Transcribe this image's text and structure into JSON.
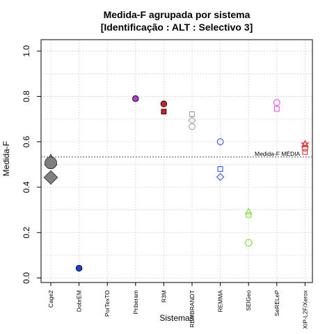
{
  "chart_data": {
    "type": "scatter",
    "title": "Medida-F agrupada por sistema",
    "subtitle": "[Identificação : ALT : Selectivo 3]",
    "xlabel": "Sistemas",
    "ylabel": "Medida-F",
    "categories": [
      "Cage2",
      "DobrEM",
      "PorTexTO",
      "Priberam",
      "R3M",
      "REMBRANDT",
      "REMMA",
      "SEIGeo",
      "SeRELeP",
      "XIP-L2F/Xerox"
    ],
    "yticks": [
      "0.0",
      "0.2",
      "0.4",
      "0.6",
      "0.8",
      "1.0"
    ],
    "ylim": [
      0,
      1
    ],
    "grid": "horizontal dotted",
    "reference_line": {
      "label": "Medida-F MÉDIA",
      "value": 0.533
    },
    "points": [
      {
        "category": "Cage2",
        "shape": "triangle",
        "style": "filled",
        "color": "#7f7f7f",
        "y": 0.52,
        "size": "large"
      },
      {
        "category": "Cage2",
        "shape": "circle",
        "style": "filled",
        "color": "#7f7f7f",
        "y": 0.507,
        "size": "large"
      },
      {
        "category": "Cage2",
        "shape": "diamond",
        "style": "filled",
        "color": "#7f7f7f",
        "y": 0.443,
        "size": "large"
      },
      {
        "category": "DobrEM",
        "shape": "circle",
        "style": "filled",
        "color": "#1a3fe0",
        "y": 0.043
      },
      {
        "category": "Priberam",
        "shape": "circle",
        "style": "filled",
        "color": "#b43ad6",
        "y": 0.79
      },
      {
        "category": "R3M",
        "shape": "circle",
        "style": "filled",
        "color": "#d62020",
        "y": 0.767
      },
      {
        "category": "R3M",
        "shape": "square",
        "style": "filled",
        "color": "#d62020",
        "y": 0.733
      },
      {
        "category": "REMBRANDT",
        "shape": "square",
        "style": "open",
        "color": "#a0a0a0",
        "y": 0.722
      },
      {
        "category": "REMBRANDT",
        "shape": "diamond",
        "style": "open",
        "color": "#a0a0a0",
        "y": 0.694
      },
      {
        "category": "REMBRANDT",
        "shape": "circle",
        "style": "open",
        "color": "#a0a0a0",
        "y": 0.667
      },
      {
        "category": "REMMA",
        "shape": "circle",
        "style": "open",
        "color": "#3355ee",
        "y": 0.6
      },
      {
        "category": "REMMA",
        "shape": "square",
        "style": "open",
        "color": "#3355ee",
        "y": 0.48
      },
      {
        "category": "REMMA",
        "shape": "diamond",
        "style": "open",
        "color": "#3355ee",
        "y": 0.445
      },
      {
        "category": "SEIGeo",
        "shape": "triangle",
        "style": "open",
        "color": "#7ddc3a",
        "y": 0.293
      },
      {
        "category": "SEIGeo",
        "shape": "square",
        "style": "open",
        "color": "#7ddc3a",
        "y": 0.278
      },
      {
        "category": "SEIGeo",
        "shape": "hexagon",
        "style": "open",
        "color": "#7ddc3a",
        "y": 0.155
      },
      {
        "category": "SeRELeP",
        "shape": "circle",
        "style": "open",
        "color": "#dd55ee",
        "y": 0.773
      },
      {
        "category": "SeRELeP",
        "shape": "square",
        "style": "open",
        "color": "#dd55ee",
        "y": 0.745
      },
      {
        "category": "XIP-L2F/Xerox",
        "shape": "star",
        "style": "open",
        "color": "#e03030",
        "y": 0.59
      },
      {
        "category": "XIP-L2F/Xerox",
        "shape": "triangle",
        "style": "open",
        "color": "#e03030",
        "y": 0.59
      },
      {
        "category": "XIP-L2F/Xerox",
        "shape": "circle",
        "style": "open",
        "color": "#e03030",
        "y": 0.572
      },
      {
        "category": "XIP-L2F/Xerox",
        "shape": "square",
        "style": "open",
        "color": "#e03030",
        "y": 0.555
      }
    ]
  }
}
